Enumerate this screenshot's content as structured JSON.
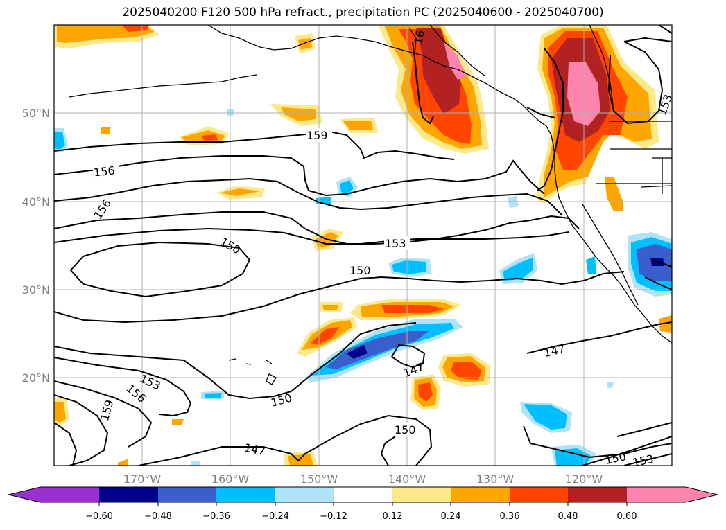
{
  "title": "2025040200 F120 500 hPa refract., precipitation PC (2025040600 - 2025040700)",
  "map": {
    "x_ticks": [
      "170°W",
      "160°W",
      "150°W",
      "140°W",
      "130°W",
      "120°W"
    ],
    "y_ticks": [
      "50°N",
      "40°N",
      "30°N",
      "20°N"
    ],
    "contour_labels": [
      "159",
      "156",
      "156",
      "150",
      "153",
      "150",
      "147",
      "150",
      "153",
      "156",
      "159",
      "150",
      "147",
      "147",
      "150",
      "153",
      "16",
      "153"
    ]
  },
  "colorbar": {
    "ticks": [
      "−0.60",
      "−0.48",
      "−0.36",
      "−0.24",
      "−0.12",
      "0.12",
      "0.24",
      "0.36",
      "0.48",
      "0.60"
    ],
    "colors": [
      "#9b30d0",
      "#00008b",
      "#3a5fcd",
      "#00bfff",
      "#aee3f8",
      "#ffffff",
      "#fce98a",
      "#ffa500",
      "#ff4500",
      "#b22222",
      "#ff85b0"
    ]
  }
}
